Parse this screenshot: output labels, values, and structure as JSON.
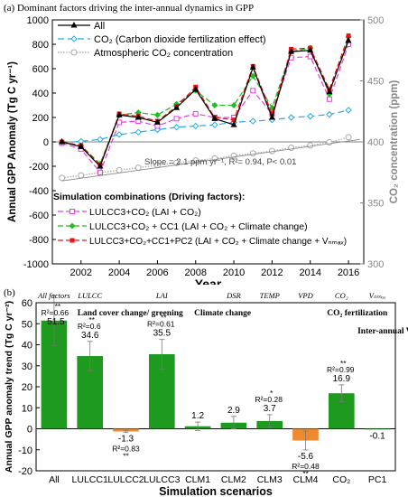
{
  "panel_a_title": "(a) Dominant factors driving the inter-annual dynamics in GPP",
  "panel_b_title": "(b)",
  "chart_data": [
    {
      "type": "line",
      "title": "(a) Dominant factors driving the inter-annual dynamics in GPP",
      "xlabel": "Year",
      "ylabel": "Annual GPP Anomaly (Tg C yr⁻¹)",
      "y2label": "CO₂ concentration (ppm)",
      "x": [
        2001,
        2002,
        2003,
        2004,
        2005,
        2006,
        2007,
        2008,
        2009,
        2010,
        2011,
        2012,
        2013,
        2014,
        2015,
        2016
      ],
      "xticks": [
        2002,
        2004,
        2006,
        2008,
        2010,
        2012,
        2014,
        2016
      ],
      "ylim": [
        -1000,
        1000
      ],
      "yticks": [
        -1000,
        -800,
        -600,
        -400,
        -200,
        0,
        200,
        400,
        600,
        800,
        1000
      ],
      "y2lim": [
        300,
        500
      ],
      "y2ticks": [
        300,
        350,
        400,
        450,
        500
      ],
      "legend_top": [
        "All",
        "CO₂ (Carbon dioxide fertilization effect)",
        "Atmospheric CO₂ concentration"
      ],
      "legend_bottom_title": "Simulation combinations (Driving factors):",
      "legend_bottom": [
        "LULCC3+CO₂ (LAI + CO₂)",
        "LULCC3+CO₂ + CC1 (LAI + CO₂ + Climate change)",
        "LULCC3+CO₂+CC1+PC2 (LAI + CO₂ + Climate change + Vₙₘₐₓ)"
      ],
      "annotation": "Slope = 2.1 ppm yr⁻¹, R²= 0.94, P< 0.01",
      "series": [
        {
          "name": "All",
          "axis": "left",
          "color": "#000000",
          "values": [
            0,
            -40,
            -200,
            220,
            200,
            160,
            280,
            430,
            190,
            140,
            610,
            200,
            740,
            750,
            410,
            830
          ]
        },
        {
          "name": "CO₂ (Carbon dioxide fertilization effect)",
          "axis": "left",
          "color": "#2aa8e0",
          "values": [
            -10,
            5,
            20,
            60,
            80,
            100,
            120,
            130,
            140,
            160,
            170,
            180,
            200,
            210,
            225,
            260
          ]
        },
        {
          "name": "Atmospheric CO₂ concentration",
          "axis": "right",
          "color": "#a9a9a9",
          "values": [
            370.5,
            372.5,
            374.8,
            376.8,
            378.8,
            381,
            382.7,
            384.8,
            386.3,
            388.6,
            390.6,
            392.5,
            395.2,
            397.1,
            399.6,
            403.8
          ]
        },
        {
          "name": "LULCC3+CO₂ (LAI + CO₂)",
          "axis": "left",
          "color": "#e040e0",
          "values": [
            -10,
            -60,
            -250,
            160,
            170,
            130,
            190,
            230,
            200,
            200,
            420,
            230,
            690,
            700,
            350,
            800
          ]
        },
        {
          "name": "LULCC3+CO₂ + CC1 (LAI + CO₂ + Climate change)",
          "axis": "left",
          "color": "#22bb22",
          "values": [
            0,
            -30,
            -180,
            220,
            240,
            220,
            310,
            420,
            300,
            300,
            540,
            280,
            740,
            770,
            390,
            860
          ]
        },
        {
          "name": "LULCC3+CO₂+CC1+PC2 (LAI + CO₂ + Climate change + Vₙₘₐₓ)",
          "axis": "left",
          "color": "#ee1111",
          "values": [
            0,
            -30,
            -190,
            230,
            210,
            170,
            290,
            450,
            200,
            180,
            620,
            230,
            760,
            770,
            430,
            870
          ]
        }
      ]
    },
    {
      "type": "bar",
      "title": "(b)",
      "xlabel": "Simulation scenarios",
      "ylabel": "Annual GPP anomaly trend (Tg C yr⁻²)",
      "ylim": [
        -20,
        60
      ],
      "yticks": [
        -20,
        -10,
        0,
        10,
        20,
        30,
        40,
        50,
        60
      ],
      "categories": [
        "All",
        "LULCC1",
        "LULCC2",
        "LULCC3",
        "CLM1",
        "CLM2",
        "CLM3",
        "CLM4",
        "CO₂",
        "PC1"
      ],
      "top_labels": [
        "All factors",
        "LULCC",
        "",
        "LAI",
        "",
        "DSR",
        "TEMP",
        "VPD",
        "CO₂",
        "Vₙₘₐₓ"
      ],
      "values": [
        51.5,
        34.6,
        -1.3,
        35.5,
        1.2,
        2.9,
        3.7,
        -5.6,
        16.9,
        -0.1
      ],
      "value_labels": [
        "51.5",
        "34.6",
        "-1.3",
        "35.5",
        "1.2",
        "2.9",
        "3.7",
        "-5.6",
        "16.9",
        "-0.1"
      ],
      "colors": [
        "#1e9a1e",
        "#1e9a1e",
        "#f08a2e",
        "#1e9a1e",
        "#1e9a1e",
        "#1e9a1e",
        "#1e9a1e",
        "#f08a2e",
        "#1e9a1e",
        "#1e9a1e"
      ],
      "errors": [
        12,
        7,
        0.5,
        7,
        2,
        3,
        3,
        4.5,
        4,
        0.3
      ],
      "r2_labels": [
        "R²=0.66",
        "R²=0.6",
        "R²=0.83",
        "R²=0.61",
        "",
        "",
        "R²=0.28",
        "R²=0.48",
        "R²=0.99",
        ""
      ],
      "significance": [
        "**",
        "**",
        "**",
        "**",
        "",
        "",
        "*",
        "**",
        "**",
        ""
      ],
      "group_labels": [
        "Land cover change/ greening",
        "Climate change",
        "CO₂ fertilization",
        "Inter-annual Vₙₘₐₓ change"
      ]
    }
  ]
}
